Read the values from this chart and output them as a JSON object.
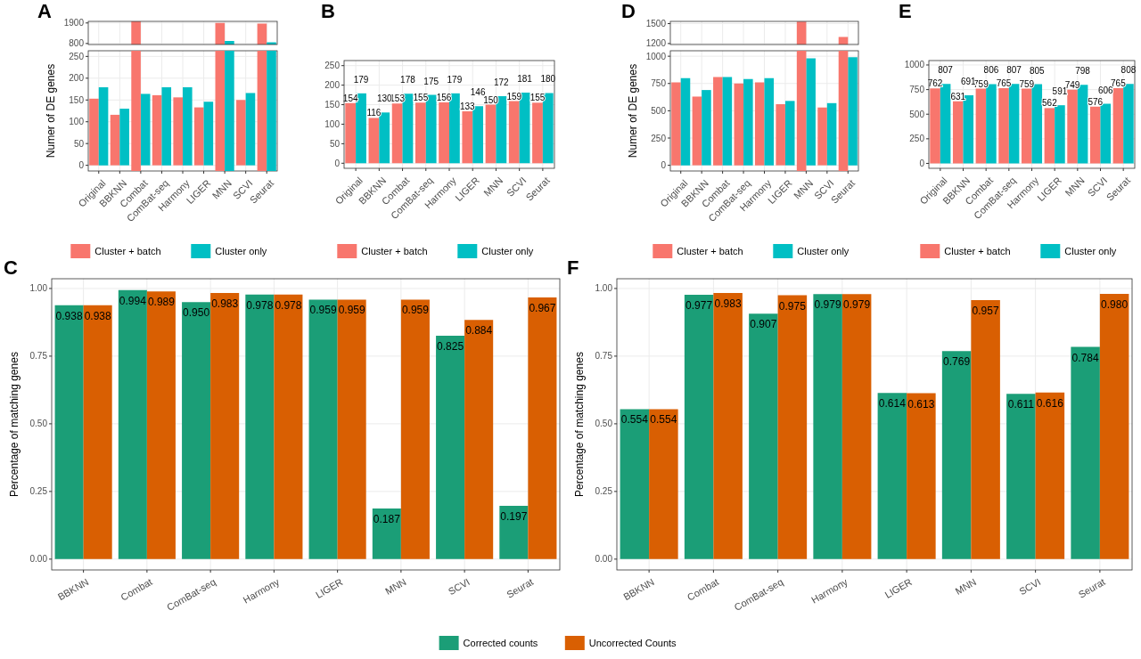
{
  "chart_data": [
    {
      "type": "bar",
      "title": "A",
      "categories": [
        null,
        null,
        null,
        null,
        null,
        null,
        null,
        null,
        null
      ],
      "series": [
        {
          "color": "#f8766d",
          "values": [
            null,
            null,
            1980,
            null,
            null,
            null,
            1900,
            null,
            1870
          ]
        },
        {
          "color": "#00bfc4",
          "values": [
            null,
            null,
            null,
            null,
            null,
            null,
            930,
            null,
            870
          ]
        }
      ],
      "ylim": [
        745,
        1985
      ],
      "yticks": [
        800,
        1900
      ],
      "grid": true,
      "tick_labels": "y"
    },
    {
      "type": "bar",
      "ylabel": "Numer of DE genes",
      "categories": [
        "Original",
        "BBKNN",
        "Combat",
        "ComBat-seq",
        "Harmony",
        "LIGER",
        "MNN",
        "SCVI",
        "Seurat"
      ],
      "series": [
        {
          "name": "Cluster + batch",
          "color": "#f8766d",
          "values": [
            153,
            116,
            null,
            161,
            156,
            133,
            null,
            150,
            null
          ]
        },
        {
          "name": "Cluster only",
          "color": "#00bfc4",
          "values": [
            179,
            130,
            164,
            179,
            179,
            146,
            null,
            166,
            null
          ]
        }
      ],
      "ylim": [
        -13,
        263
      ],
      "yticks": [
        0,
        50,
        100,
        150,
        200,
        250
      ],
      "grid": true,
      "legend": "bottom"
    },
    {
      "type": "bar",
      "title": "B",
      "categories": [
        "Original",
        "BBKNN",
        "Combat",
        "ComBat-seq",
        "Harmony",
        "LIGER",
        "MNN",
        "SCVI",
        "Seurat"
      ],
      "series": [
        {
          "name": "Cluster + batch",
          "color": "#f8766d",
          "values": [
            154,
            116,
            153,
            155,
            156,
            133,
            150,
            159,
            155
          ]
        },
        {
          "name": "Cluster only",
          "color": "#00bfc4",
          "values": [
            179,
            130,
            178,
            175,
            179,
            146,
            172,
            181,
            180
          ]
        }
      ],
      "ylim": [
        -13,
        263
      ],
      "yticks": [
        0,
        50,
        100,
        150,
        200,
        250
      ],
      "grid": true,
      "legend": "bottom",
      "data_labels": true
    },
    {
      "type": "bar",
      "title": "D",
      "categories": [
        null,
        null,
        null,
        null,
        null,
        null,
        null,
        null,
        null
      ],
      "series": [
        {
          "color": "#f8766d",
          "values": [
            null,
            null,
            null,
            null,
            null,
            null,
            1530,
            null,
            1300
          ]
        }
      ],
      "ylim": [
        1185,
        1534
      ],
      "yticks": [
        1200,
        1500
      ],
      "grid": true,
      "tick_labels": "y"
    },
    {
      "type": "bar",
      "ylabel": "Numer of DE genes",
      "categories": [
        "Original",
        "BBKNN",
        "Combat",
        "ComBat-seq",
        "Harmony",
        "LIGER",
        "MNN",
        "SCVI",
        "Seurat"
      ],
      "series": [
        {
          "name": "Cluster + batch",
          "color": "#f8766d",
          "values": [
            760,
            630,
            810,
            750,
            760,
            560,
            null,
            530,
            null
          ]
        },
        {
          "name": "Cluster only",
          "color": "#00bfc4",
          "values": [
            800,
            690,
            810,
            790,
            800,
            590,
            980,
            570,
            990
          ]
        }
      ],
      "ylim": [
        -52,
        1050
      ],
      "yticks": [
        0,
        250,
        500,
        750,
        1000
      ],
      "grid": true,
      "legend": "bottom"
    },
    {
      "type": "bar",
      "title": "E",
      "categories": [
        "Original",
        "BBKNN",
        "Combat",
        "ComBat-seq",
        "Harmony",
        "LIGER",
        "MNN",
        "SCVI",
        "Seurat"
      ],
      "series": [
        {
          "name": "Cluster + batch",
          "color": "#f8766d",
          "values": [
            762,
            631,
            759,
            765,
            759,
            562,
            749,
            576,
            765
          ]
        },
        {
          "name": "Cluster only",
          "color": "#00bfc4",
          "values": [
            807,
            691,
            806,
            807,
            805,
            591,
            798,
            606,
            808
          ]
        }
      ],
      "ylim": [
        -50,
        1045
      ],
      "yticks": [
        0,
        250,
        500,
        750,
        1000
      ],
      "grid": true,
      "legend": "bottom",
      "data_labels": true
    },
    {
      "type": "bar",
      "title": "C",
      "ylabel": "Percentage of matching genes",
      "categories": [
        "BBKNN",
        "Combat",
        "ComBat-seq",
        "Harmony",
        "LIGER",
        "MNN",
        "SCVI",
        "Seurat"
      ],
      "series": [
        {
          "name": "Corrected counts",
          "color": "#1b9e77",
          "values": [
            0.938,
            0.994,
            0.95,
            0.978,
            0.959,
            0.187,
            0.825,
            0.197
          ],
          "value_labels": [
            "0.938",
            "0.994",
            "0.950",
            "0.978",
            "0.959",
            "0.187",
            "0.825",
            "0.197"
          ]
        },
        {
          "name": "Uncorrected Counts",
          "color": "#d95f02",
          "values": [
            0.938,
            0.989,
            0.983,
            0.978,
            0.959,
            0.959,
            0.884,
            0.967
          ],
          "value_labels": [
            "0.938",
            "0.989",
            "0.983",
            "0.978",
            "0.959",
            "0.959",
            "0.884",
            "0.967"
          ]
        }
      ],
      "ylim": [
        -0.04,
        1.036
      ],
      "yticks": [
        {
          "value": 0,
          "label": "0.00"
        },
        {
          "value": 0.25,
          "label": "0.25"
        },
        {
          "value": 0.5,
          "label": "0.50"
        },
        {
          "value": 0.75,
          "label": "0.75"
        },
        {
          "value": 1,
          "label": "1.00"
        }
      ],
      "grid": true,
      "legend": "bottom"
    },
    {
      "type": "bar",
      "title": "F",
      "ylabel": "Percentage of matching genes",
      "categories": [
        "BBKNN",
        "Combat",
        "ComBat-seq",
        "Harmony",
        "LIGER",
        "MNN",
        "SCVI",
        "Seurat"
      ],
      "series": [
        {
          "color": "#1b9e77",
          "values": [
            0.554,
            0.977,
            0.907,
            0.979,
            0.614,
            0.769,
            0.611,
            0.784
          ],
          "value_labels": [
            "0.554",
            "0.977",
            "0.907",
            "0.979",
            "0.614",
            "0.769",
            "0.611",
            "0.784"
          ]
        },
        {
          "color": "#d95f02",
          "values": [
            0.554,
            0.983,
            0.975,
            0.979,
            0.613,
            0.957,
            0.616,
            0.98
          ],
          "value_labels": [
            "0.554",
            "0.983",
            "0.975",
            "0.979",
            "0.613",
            "0.957",
            "0.616",
            "0.980"
          ]
        }
      ],
      "ylim": [
        -0.04,
        1.036
      ],
      "yticks": [
        {
          "value": 0,
          "label": "0.00"
        },
        {
          "value": 0.25,
          "label": "0.25"
        },
        {
          "value": 0.5,
          "label": "0.50"
        },
        {
          "value": 0.75,
          "label": "0.75"
        },
        {
          "value": 1,
          "label": "1.00"
        }
      ],
      "grid": true
    }
  ]
}
